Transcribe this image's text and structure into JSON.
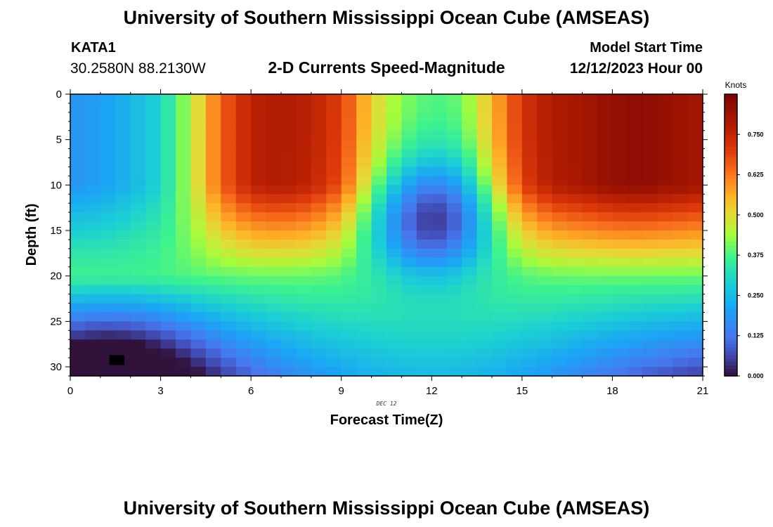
{
  "header": {
    "title": "University of Southern Mississippi Ocean Cube (AMSEAS)",
    "station_id": "KATA1",
    "station_coords": "30.2580N  88.2130W",
    "subtitle": "2-D Currents Speed-Magnitude",
    "model_start_label": "Model Start Time",
    "model_start_value": "12/12/2023 Hour 00"
  },
  "footer": {
    "title": "University of Southern Mississippi Ocean Cube (AMSEAS)"
  },
  "chart_data": {
    "type": "heatmap",
    "title": "2-D Currents Speed-Magnitude",
    "xlabel": "Forecast Time(Z)",
    "ylabel": "Depth (ft)",
    "date_label": "DEC 12",
    "xlim": [
      0,
      21
    ],
    "ylim": [
      0,
      31
    ],
    "x_ticks": [
      0,
      3,
      6,
      9,
      12,
      15,
      18,
      21
    ],
    "y_ticks": [
      0,
      5,
      10,
      15,
      20,
      25,
      30
    ],
    "colorbar": {
      "units": "Knots",
      "range": [
        0,
        0.875
      ],
      "ticks": [
        "0.000",
        "0.125",
        "0.250",
        "0.375",
        "0.500",
        "0.625",
        "0.750"
      ]
    },
    "time_profile_hours": [
      0,
      1,
      2,
      3,
      4,
      5,
      6,
      7,
      8,
      9,
      10,
      11,
      12,
      13,
      14,
      15,
      16,
      17,
      18,
      19,
      20,
      21
    ],
    "surface_speed_knots": [
      0.18,
      0.2,
      0.24,
      0.3,
      0.45,
      0.65,
      0.76,
      0.78,
      0.76,
      0.7,
      0.52,
      0.42,
      0.38,
      0.4,
      0.55,
      0.72,
      0.78,
      0.8,
      0.83,
      0.84,
      0.82,
      0.8
    ],
    "min_depth_ft": [
      0,
      0,
      0,
      0,
      6,
      8,
      10,
      11,
      11,
      10,
      14,
      16,
      17,
      16,
      13,
      10,
      9,
      10,
      10,
      10,
      10,
      10
    ],
    "annotations": [
      "near-surface maximum ~0.85 kt around 18–19Z",
      "subsurface minimum ~0.03 kt near 12Z at 14 ft",
      "bottom minimum ~0.0 kt near 0–3Z at 28–31 ft"
    ]
  }
}
